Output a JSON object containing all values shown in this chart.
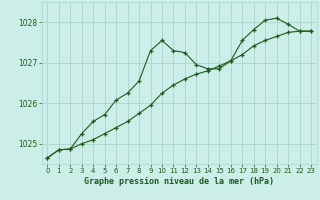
{
  "xlabel": "Graphe pression niveau de la mer (hPa)",
  "background_color": "#cceee8",
  "grid_color": "#aad4ce",
  "line_color": "#1a5c1a",
  "ylim": [
    1024.5,
    1028.5
  ],
  "xlim": [
    -0.5,
    23.5
  ],
  "yticks": [
    1025,
    1026,
    1027,
    1028
  ],
  "xticks": [
    0,
    1,
    2,
    3,
    4,
    5,
    6,
    7,
    8,
    9,
    10,
    11,
    12,
    13,
    14,
    15,
    16,
    17,
    18,
    19,
    20,
    21,
    22,
    23
  ],
  "series1_x": [
    0,
    1,
    2,
    3,
    4,
    5,
    6,
    7,
    8,
    9,
    10,
    11,
    12,
    13,
    14,
    15,
    16,
    17,
    18,
    19,
    20,
    21,
    22,
    23
  ],
  "series1_y": [
    1024.65,
    1024.85,
    1024.87,
    1025.25,
    1025.55,
    1025.72,
    1026.08,
    1026.25,
    1026.55,
    1027.3,
    1027.55,
    1027.3,
    1027.25,
    1026.95,
    1026.85,
    1026.85,
    1027.05,
    1027.55,
    1027.82,
    1028.05,
    1028.1,
    1027.95,
    1027.78,
    1027.78
  ],
  "series2_x": [
    0,
    1,
    2,
    3,
    4,
    5,
    6,
    7,
    8,
    9,
    10,
    11,
    12,
    13,
    14,
    15,
    16,
    17,
    18,
    19,
    20,
    21,
    22,
    23
  ],
  "series2_y": [
    1024.65,
    1024.85,
    1024.87,
    1025.0,
    1025.1,
    1025.25,
    1025.4,
    1025.55,
    1025.75,
    1025.95,
    1026.25,
    1026.45,
    1026.6,
    1026.72,
    1026.8,
    1026.92,
    1027.05,
    1027.2,
    1027.42,
    1027.55,
    1027.65,
    1027.75,
    1027.78,
    1027.78
  ]
}
